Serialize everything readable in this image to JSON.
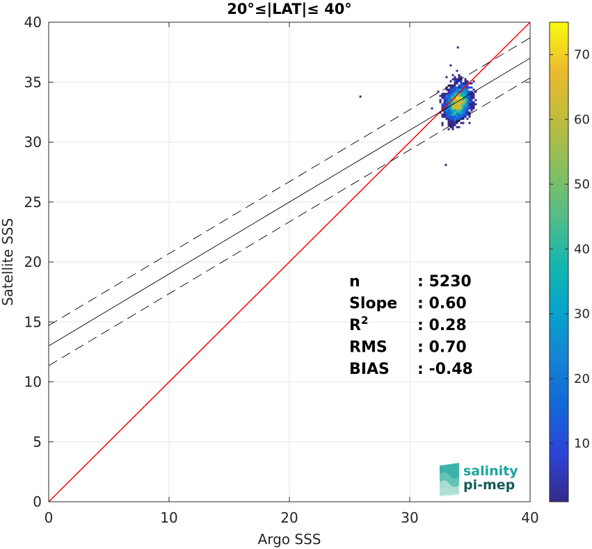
{
  "chart_data": {
    "type": "scatter",
    "title": "20°≤|LAT|≤ 40°",
    "xlabel": "Argo SSS",
    "ylabel": "Satellite SSS",
    "xlim": [
      0,
      40
    ],
    "ylim": [
      0,
      40
    ],
    "xticks": [
      "0",
      "10",
      "20",
      "30",
      "40"
    ],
    "yticks": [
      "0",
      "5",
      "10",
      "15",
      "20",
      "25",
      "30",
      "35",
      "40"
    ],
    "grid": true,
    "colorbar": {
      "range": [
        1,
        75
      ],
      "ticks": [
        "10",
        "20",
        "30",
        "40",
        "50",
        "60",
        "70"
      ],
      "tick_values": [
        10,
        20,
        30,
        40,
        50,
        60,
        70
      ],
      "colormap": "parula"
    },
    "lines": [
      {
        "name": "",
        "kind": "identity",
        "slope": 1.0,
        "intercept": 0.0,
        "color": "#ff0000"
      },
      {
        "name": "",
        "kind": "fit",
        "slope": 0.6,
        "intercept": 13.0,
        "color": "#000000"
      },
      {
        "name": "",
        "kind": "fit-upper",
        "slope": 0.6,
        "intercept": 14.7,
        "color": "#000000",
        "dash": true
      },
      {
        "name": "",
        "kind": "fit-lower",
        "slope": 0.6,
        "intercept": 11.35,
        "color": "#000000",
        "dash": true
      }
    ],
    "density": {
      "center": [
        34.0,
        33.3
      ],
      "spread": [
        0.55,
        0.7
      ],
      "outliers": [
        [
          25.9,
          33.8
        ],
        [
          34.0,
          37.9
        ],
        [
          33.0,
          28.1
        ],
        [
          33.4,
          36.4
        ]
      ]
    },
    "stats": [
      {
        "label": "n",
        "value": ": 5230"
      },
      {
        "label": "Slope",
        "value": ": 0.60"
      },
      {
        "label": "R",
        "sup": "2",
        "value": ": 0.28"
      },
      {
        "label": "RMS",
        "value": ": 0.70"
      },
      {
        "label": "BIAS",
        "value": ": -0.48"
      }
    ]
  },
  "logo": {
    "line1": "salinity",
    "line2": "pi-mep"
  },
  "colors": {
    "identity": "#ff0000",
    "fit": "#000000",
    "logo_teal": "#1aa59a",
    "logo_dark": "#165a5a"
  }
}
